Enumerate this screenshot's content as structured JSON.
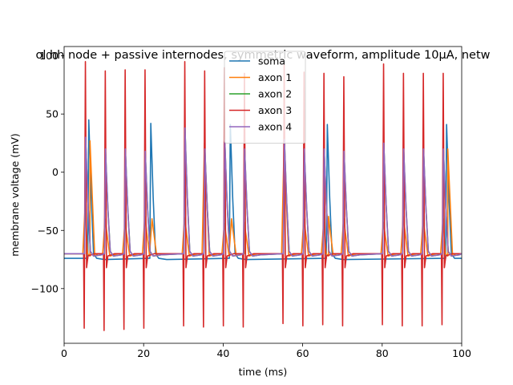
{
  "chart_data": {
    "type": "line",
    "title": "ol hh node + passive internodes, symmetric waveform, amplitude 10μA, netw",
    "xlabel": "time (ms)",
    "ylabel": "membrane voltage (mV)",
    "xlim": [
      0,
      100
    ],
    "ylim": [
      -147,
      108
    ],
    "xticks": [
      0,
      20,
      40,
      60,
      80,
      100
    ],
    "yticks": [
      -100,
      -50,
      0,
      50,
      100
    ],
    "ytick_labels": [
      "−100",
      "−50",
      "0",
      "50",
      "100"
    ],
    "grid": false,
    "legend": {
      "placement": "upper-center"
    },
    "stim_times": [
      5,
      10,
      15,
      20,
      30,
      35,
      40,
      45,
      55,
      60,
      65,
      70,
      80,
      85,
      90,
      95
    ],
    "series": [
      {
        "name": "soma",
        "color": "#1f77b4",
        "baseline": -74,
        "trough": -74,
        "spikes": [
          [
            6.2,
            45
          ],
          [
            21.8,
            42
          ],
          [
            41.8,
            41
          ],
          [
            66.2,
            41
          ],
          [
            96.2,
            41
          ]
        ]
      },
      {
        "name": "axon 1",
        "color": "#ff7f0e",
        "baseline": -70,
        "trough": -72,
        "peaks": [
          -28,
          27,
          -40,
          -43,
          -38,
          -40,
          -39,
          25,
          -44,
          -40,
          -43,
          20,
          -40,
          -43,
          -38,
          -40,
          -43,
          -38,
          -40,
          -40,
          20
        ]
      },
      {
        "name": "axon 2",
        "color": "#2ca02c",
        "baseline": -70,
        "trough": -72,
        "spikes": [
          [
            5.4,
            30
          ],
          [
            10.4,
            20
          ],
          [
            15.4,
            20
          ],
          [
            20.4,
            18
          ],
          [
            30.4,
            38
          ],
          [
            35.4,
            20
          ],
          [
            40.4,
            28
          ],
          [
            45.4,
            20
          ],
          [
            55.4,
            28
          ],
          [
            60.4,
            20
          ],
          [
            65.4,
            20
          ],
          [
            70.4,
            18
          ],
          [
            80.4,
            25
          ],
          [
            85.4,
            20
          ],
          [
            90.4,
            20
          ],
          [
            95.4,
            20
          ]
        ]
      },
      {
        "name": "axon 3",
        "color": "#d62728",
        "baseline": -70,
        "trough": -72,
        "spikes": [
          [
            5.2,
            95,
            -134
          ],
          [
            10.2,
            87,
            -136
          ],
          [
            15.2,
            88,
            -135
          ],
          [
            20.2,
            88,
            -134
          ],
          [
            30.2,
            95,
            -132
          ],
          [
            35.2,
            87,
            -133
          ],
          [
            40.2,
            90,
            -132
          ],
          [
            45.2,
            85,
            -133
          ],
          [
            55.2,
            92,
            -130
          ],
          [
            60.2,
            86,
            -132
          ],
          [
            65.2,
            85,
            -131
          ],
          [
            70.2,
            82,
            -132
          ],
          [
            80.2,
            93,
            -131
          ],
          [
            85.2,
            85,
            -132
          ],
          [
            90.2,
            85,
            -132
          ],
          [
            95.2,
            85,
            -131
          ]
        ]
      },
      {
        "name": "axon 4",
        "color": "#9467bd",
        "baseline": -70,
        "trough": -72,
        "spikes": [
          [
            5.4,
            30
          ],
          [
            10.4,
            20
          ],
          [
            15.4,
            20
          ],
          [
            20.4,
            18
          ],
          [
            30.4,
            38
          ],
          [
            35.4,
            20
          ],
          [
            40.4,
            28
          ],
          [
            45.4,
            20
          ],
          [
            55.4,
            28
          ],
          [
            60.4,
            20
          ],
          [
            65.4,
            20
          ],
          [
            70.4,
            18
          ],
          [
            80.4,
            25
          ],
          [
            85.4,
            20
          ],
          [
            90.4,
            20
          ],
          [
            95.4,
            20
          ]
        ]
      }
    ]
  }
}
